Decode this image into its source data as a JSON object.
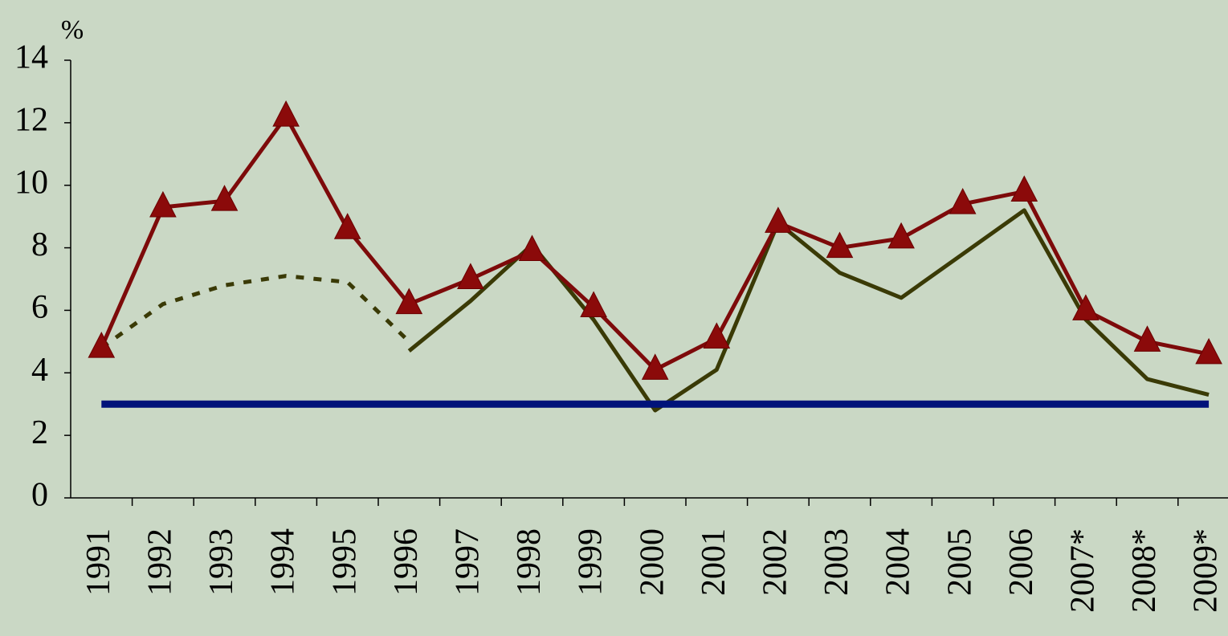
{
  "chart_data": {
    "type": "line",
    "y_label": "%",
    "categories": [
      "1991",
      "1992",
      "1993",
      "1994",
      "1995",
      "1996",
      "1997",
      "1998",
      "1999",
      "2000",
      "2001",
      "2002",
      "2003",
      "2004",
      "2005",
      "2006",
      "2007*",
      "2008*",
      "2009*"
    ],
    "series": [
      {
        "color": "#3a3a06",
        "dash": true,
        "values": [
          4.8,
          6.2,
          6.8,
          7.1,
          6.9,
          5.0,
          null,
          null,
          null,
          null,
          null,
          null,
          null,
          null,
          null,
          null,
          null,
          null,
          null
        ]
      },
      {
        "color": "#3a3a06",
        "dash": false,
        "values": [
          null,
          null,
          null,
          null,
          null,
          4.7,
          6.3,
          8.1,
          5.7,
          2.8,
          4.1,
          8.8,
          7.2,
          6.4,
          7.8,
          9.2,
          5.7,
          3.8,
          3.3
        ]
      },
      {
        "color": "#00127a",
        "dash": false,
        "values": [
          3,
          3,
          3,
          3,
          3,
          3,
          3,
          3,
          3,
          3,
          3,
          3,
          3,
          3,
          3,
          3,
          3,
          3,
          3
        ]
      },
      {
        "color": "#7d0a0a",
        "dash": false,
        "marker": "triangle",
        "values": [
          4.8,
          9.3,
          9.5,
          12.2,
          8.6,
          6.2,
          7.0,
          7.9,
          6.1,
          4.1,
          5.1,
          8.8,
          8.0,
          8.3,
          9.4,
          9.8,
          6.0,
          5.0,
          4.6
        ]
      }
    ],
    "ylim": [
      0,
      14
    ],
    "yticks": [
      0,
      2,
      4,
      6,
      8,
      10,
      12,
      14
    ]
  }
}
